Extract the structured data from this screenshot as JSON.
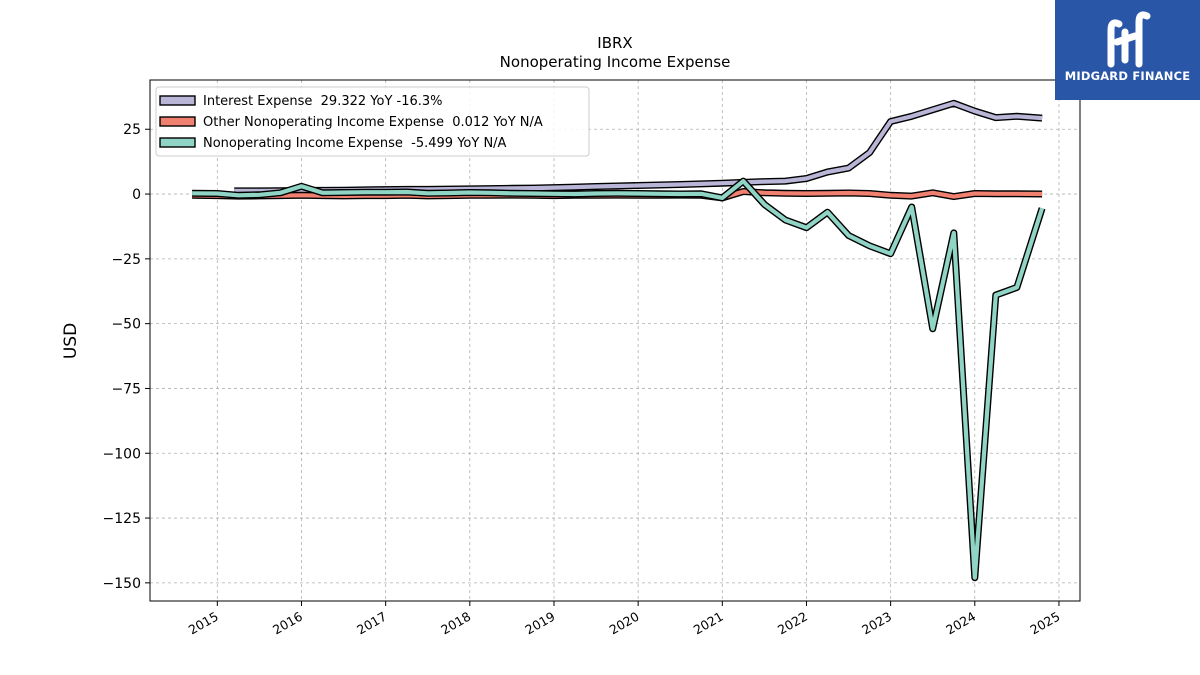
{
  "logo": {
    "text": "MIDGARD FINANCE",
    "color": "#2a56a8"
  },
  "chart_data": {
    "type": "line",
    "title": "IBRX",
    "subtitle": "Nonoperating Income Expense",
    "xlabel": "",
    "ylabel": "USD",
    "xlim": [
      2014.2,
      2025.25
    ],
    "ylim": [
      -157,
      44
    ],
    "x_ticks": [
      "2015",
      "2016",
      "2017",
      "2018",
      "2019",
      "2020",
      "2021",
      "2022",
      "2023",
      "2024",
      "2025"
    ],
    "y_ticks": [
      25,
      0,
      -25,
      -50,
      -75,
      -100,
      -125,
      -150
    ],
    "y_tick_labels": [
      "25",
      "0",
      "−25",
      "−50",
      "−75",
      "−100",
      "−125",
      "−150"
    ],
    "grid": true,
    "legend_position": "top-left",
    "series": [
      {
        "name": "Interest Expense",
        "legend": "Interest Expense  29.322 YoY -16.3%",
        "color": "#b8b5d6",
        "x": [
          2015.2,
          2015.5,
          2015.75,
          2016.0,
          2016.25,
          2016.5,
          2016.75,
          2017.0,
          2017.25,
          2017.5,
          2017.75,
          2018.0,
          2018.25,
          2018.5,
          2018.75,
          2019.0,
          2019.25,
          2019.5,
          2019.75,
          2020.0,
          2020.25,
          2020.5,
          2020.75,
          2021.0,
          2021.25,
          2021.5,
          2021.75,
          2022.0,
          2022.25,
          2022.5,
          2022.75,
          2023.0,
          2023.25,
          2023.5,
          2023.75,
          2024.0,
          2024.25,
          2024.5,
          2024.8
        ],
        "values": [
          1.2,
          1.2,
          1.3,
          1.4,
          1.4,
          1.5,
          1.6,
          1.7,
          1.8,
          1.8,
          1.9,
          2.0,
          2.1,
          2.2,
          2.3,
          2.5,
          2.7,
          2.9,
          3.1,
          3.3,
          3.5,
          3.7,
          3.9,
          4.2,
          4.5,
          4.8,
          5.0,
          6.0,
          8.5,
          10.0,
          16.0,
          28.0,
          30.0,
          32.5,
          35.0,
          32.0,
          29.5,
          30.0,
          29.3
        ]
      },
      {
        "name": "Other Nonoperating Income Expense",
        "legend": "Other Nonoperating Income Expense  0.012 YoY N/A",
        "color": "#f08070",
        "x": [
          2014.7,
          2015.0,
          2015.25,
          2015.5,
          2015.75,
          2016.0,
          2016.25,
          2016.5,
          2016.75,
          2017.0,
          2017.25,
          2017.5,
          2017.75,
          2018.0,
          2018.25,
          2018.5,
          2018.75,
          2019.0,
          2019.25,
          2019.5,
          2019.75,
          2020.0,
          2020.25,
          2020.5,
          2020.75,
          2021.0,
          2021.25,
          2021.5,
          2021.75,
          2022.0,
          2022.25,
          2022.5,
          2022.75,
          2023.0,
          2023.25,
          2023.5,
          2023.75,
          2024.0,
          2024.25,
          2024.5,
          2024.8
        ],
        "values": [
          -0.5,
          -0.6,
          -0.8,
          -0.7,
          -0.6,
          -0.5,
          -0.6,
          -0.7,
          -0.6,
          -0.6,
          -0.5,
          -0.7,
          -0.6,
          -0.5,
          -0.5,
          -0.4,
          -0.5,
          -0.6,
          -0.5,
          -0.5,
          -0.4,
          -0.5,
          -0.5,
          -0.4,
          -0.5,
          -1.5,
          1.0,
          0.5,
          0.3,
          0.2,
          0.3,
          0.4,
          0.2,
          -0.5,
          -0.8,
          0.5,
          -1.0,
          0.2,
          0.1,
          0.1,
          0.012
        ]
      },
      {
        "name": "Nonoperating Income Expense",
        "legend": "Nonoperating Income Expense  -5.499 YoY N/A",
        "color": "#8fd4c4",
        "x": [
          2014.7,
          2015.0,
          2015.25,
          2015.5,
          2015.75,
          2016.0,
          2016.25,
          2016.5,
          2016.75,
          2017.0,
          2017.25,
          2017.5,
          2017.75,
          2018.0,
          2018.25,
          2018.5,
          2018.75,
          2019.0,
          2019.25,
          2019.5,
          2019.75,
          2020.0,
          2020.25,
          2020.5,
          2020.75,
          2021.0,
          2021.25,
          2021.5,
          2021.75,
          2022.0,
          2022.25,
          2022.5,
          2022.75,
          2023.0,
          2023.25,
          2023.5,
          2023.75,
          2024.0,
          2024.25,
          2024.5,
          2024.8
        ],
        "values": [
          0.3,
          0.2,
          -0.5,
          -0.3,
          0.5,
          3.0,
          0.5,
          0.6,
          0.7,
          0.7,
          0.8,
          0.3,
          0.4,
          0.6,
          0.5,
          0.3,
          0.2,
          0.1,
          0.0,
          0.2,
          0.3,
          0.2,
          0.1,
          0.0,
          0.1,
          -1.5,
          5.0,
          -4.0,
          -10.0,
          -13.0,
          -7.0,
          -16.0,
          -20.0,
          -23.0,
          -5.0,
          -52.0,
          -15.0,
          -148.0,
          -39.0,
          -36.0,
          -5.499
        ]
      }
    ]
  }
}
